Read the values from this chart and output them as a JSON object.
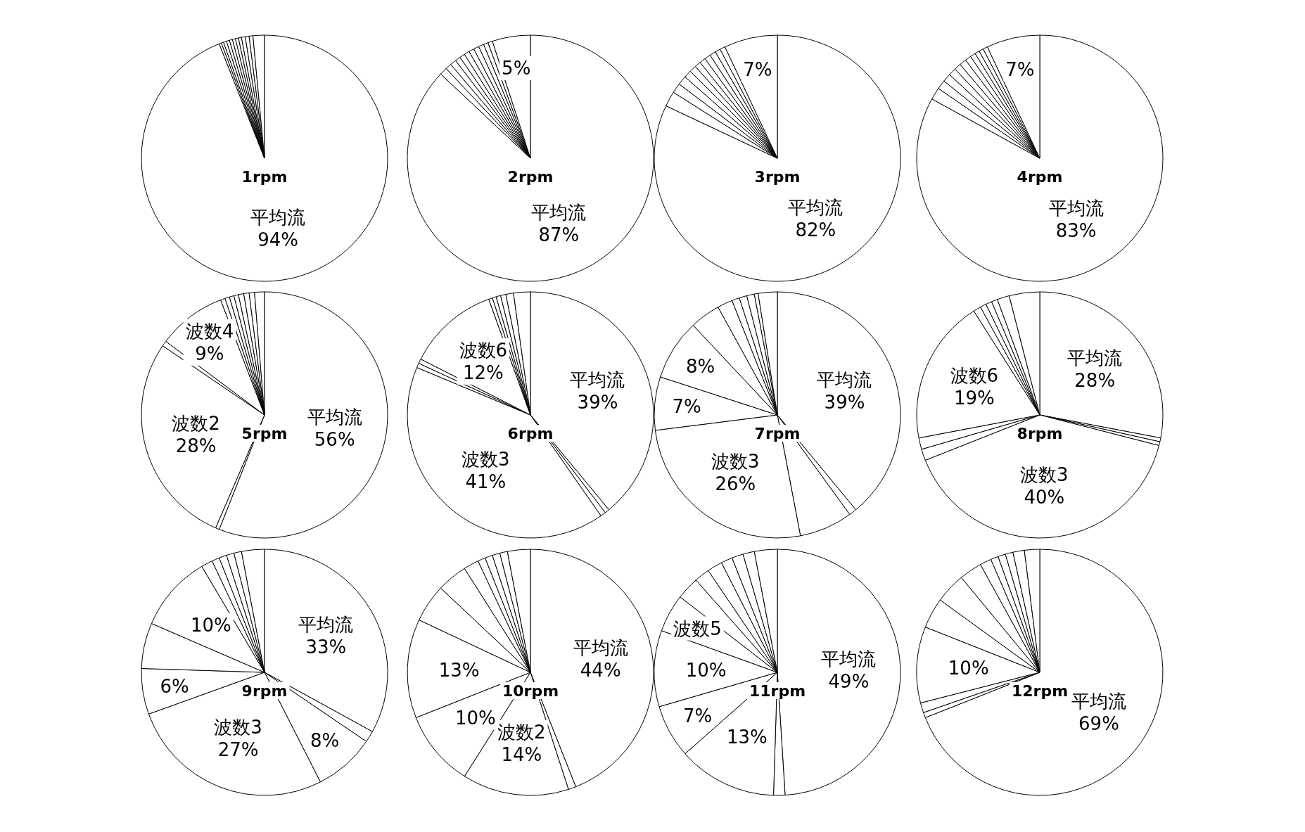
{
  "chart_data": [
    {
      "type": "pie",
      "title": "1rpm",
      "categories": [
        "平均流",
        null,
        null,
        null,
        null,
        null,
        null,
        null,
        null,
        null,
        null,
        null,
        null
      ],
      "values": [
        94,
        0.3,
        0.3,
        0.4,
        0.4,
        0.4,
        0.4,
        0.4,
        0.4,
        0.5,
        0.5,
        0.5,
        1.5
      ],
      "value_labels": [
        "94%",
        null,
        null,
        null,
        null,
        null,
        null,
        null,
        null,
        null,
        null,
        null,
        null
      ],
      "colors": [
        "#ffffff",
        "#ffffff",
        "#ffffff",
        "#ffffff",
        "#ffffff",
        "#ffffff",
        "#ffffff",
        "#ffffff",
        "#ffffff",
        "#ffffff",
        "#ffffff",
        "#ffffff",
        "#ffffff"
      ]
    },
    {
      "type": "pie",
      "title": "2rpm",
      "categories": [
        "平均流",
        null,
        null,
        null,
        null,
        null,
        null,
        null,
        null,
        null,
        null,
        null,
        null
      ],
      "values": [
        87,
        1.0,
        0.8,
        0.8,
        0.7,
        0.7,
        0.7,
        0.7,
        0.7,
        0.7,
        0.6,
        0.6,
        5
      ],
      "value_labels": [
        "87%",
        null,
        null,
        null,
        null,
        null,
        null,
        null,
        null,
        null,
        null,
        null,
        "5%"
      ],
      "colors": [
        "#ffffff",
        "#ffffff",
        "#ffffff",
        "#ffffff",
        "#ffffff",
        "#ffffff",
        "#ffffff",
        "#ffffff",
        "#ffffff",
        "#ffffff",
        "#ffffff",
        "#ffffff",
        "#ffffff"
      ]
    },
    {
      "type": "pie",
      "title": "3rpm",
      "categories": [
        "平均流",
        null,
        null,
        null,
        null,
        null,
        null,
        null,
        null,
        null,
        null,
        null,
        null
      ],
      "values": [
        82,
        2.0,
        1.3,
        1.2,
        1.0,
        0.9,
        0.8,
        0.8,
        0.8,
        0.8,
        0.7,
        0.7,
        7
      ],
      "value_labels": [
        "82%",
        null,
        null,
        null,
        null,
        null,
        null,
        null,
        null,
        null,
        null,
        null,
        "7%"
      ],
      "colors": [
        "#ffffff",
        "#ffffff",
        "#ffffff",
        "#ffffff",
        "#ffffff",
        "#ffffff",
        "#ffffff",
        "#ffffff",
        "#ffffff",
        "#ffffff",
        "#ffffff",
        "#ffffff",
        "#ffffff"
      ]
    },
    {
      "type": "pie",
      "title": "4rpm",
      "categories": [
        "平均流",
        null,
        null,
        null,
        null,
        null,
        null,
        null,
        null,
        null,
        null,
        null,
        null
      ],
      "values": [
        83,
        1.6,
        1.2,
        1.1,
        1.0,
        0.9,
        0.9,
        0.8,
        0.7,
        0.6,
        0.6,
        0.6,
        7
      ],
      "value_labels": [
        "83%",
        null,
        null,
        null,
        null,
        null,
        null,
        null,
        null,
        null,
        null,
        null,
        "7%"
      ],
      "colors": [
        "#ffffff",
        "#ffffff",
        "#ffffff",
        "#ffffff",
        "#ffffff",
        "#ffffff",
        "#ffffff",
        "#ffffff",
        "#ffffff",
        "#ffffff",
        "#ffffff",
        "#ffffff",
        "#ffffff"
      ]
    },
    {
      "type": "pie",
      "title": "5rpm",
      "categories": [
        "平均流",
        null,
        "波数2",
        null,
        "波数4",
        null,
        null,
        null,
        null,
        null,
        null,
        null,
        null
      ],
      "values": [
        56,
        0.5,
        28,
        0.7,
        9,
        0.6,
        0.6,
        0.6,
        0.6,
        0.7,
        0.7,
        0.7,
        1.3
      ],
      "value_labels": [
        "56%",
        null,
        "28%",
        null,
        "9%",
        null,
        null,
        null,
        null,
        null,
        null,
        null,
        null
      ],
      "colors": [
        "#ffffff",
        "#ffffff",
        "#ffffff",
        "#ffffff",
        "#ffffff",
        "#ffffff",
        "#ffffff",
        "#ffffff",
        "#ffffff",
        "#ffffff",
        "#ffffff",
        "#ffffff",
        "#ffffff"
      ]
    },
    {
      "type": "pie",
      "title": "6rpm",
      "categories": [
        "平均流",
        null,
        null,
        "波数3",
        null,
        null,
        "波数6",
        null,
        null,
        null,
        null,
        null,
        null
      ],
      "values": [
        39,
        0.6,
        0.7,
        41,
        0.6,
        0.6,
        12,
        0.5,
        0.5,
        0.6,
        0.7,
        1.0,
        2.2
      ],
      "value_labels": [
        "39%",
        null,
        null,
        "41%",
        null,
        null,
        "12%",
        null,
        null,
        null,
        null,
        null,
        null
      ],
      "colors": [
        "#ffffff",
        "#ffffff",
        "#ffffff",
        "#ffffff",
        "#ffffff",
        "#ffffff",
        "#ffffff",
        "#ffffff",
        "#ffffff",
        "#ffffff",
        "#ffffff",
        "#ffffff",
        "#ffffff"
      ]
    },
    {
      "type": "pie",
      "title": "7rpm",
      "categories": [
        "平均流",
        null,
        null,
        "波数3",
        null,
        null,
        null,
        null,
        null,
        null,
        null,
        null,
        null
      ],
      "values": [
        39,
        1,
        7,
        26,
        7,
        8,
        4,
        2,
        1,
        1,
        1,
        0.5,
        2.5
      ],
      "value_labels": [
        "39%",
        null,
        null,
        "26%",
        "7%",
        "8%",
        null,
        null,
        null,
        null,
        null,
        null,
        null
      ],
      "colors": [
        "#ffffff",
        "#ffffff",
        "#ffffff",
        "#ffffff",
        "#ffffff",
        "#ffffff",
        "#ffffff",
        "#ffffff",
        "#ffffff",
        "#ffffff",
        "#ffffff",
        "#ffffff",
        "#ffffff"
      ]
    },
    {
      "type": "pie",
      "title": "8rpm",
      "categories": [
        "平均流",
        null,
        null,
        "波数3",
        null,
        null,
        "波数6",
        null,
        null,
        null,
        null,
        null,
        null
      ],
      "values": [
        28,
        0.5,
        0.5,
        40,
        1.5,
        1.5,
        19,
        1,
        0.8,
        0.8,
        0.8,
        1.6,
        4
      ],
      "value_labels": [
        "28%",
        null,
        null,
        "40%",
        null,
        null,
        "19%",
        null,
        null,
        null,
        null,
        null,
        null
      ],
      "colors": [
        "#ffffff",
        "#ffffff",
        "#ffffff",
        "#ffffff",
        "#ffffff",
        "#ffffff",
        "#ffffff",
        "#ffffff",
        "#ffffff",
        "#ffffff",
        "#ffffff",
        "#ffffff",
        "#ffffff"
      ]
    },
    {
      "type": "pie",
      "title": "9rpm",
      "categories": [
        "平均流",
        null,
        null,
        "波数3",
        null,
        null,
        null,
        null,
        null,
        null,
        null,
        null,
        null
      ],
      "values": [
        33,
        1.5,
        8,
        27,
        6,
        6,
        10,
        1.5,
        1,
        1,
        1,
        1,
        3
      ],
      "value_labels": [
        "33%",
        null,
        "8%",
        "27%",
        "6%",
        null,
        "10%",
        null,
        null,
        null,
        null,
        null,
        null
      ],
      "colors": [
        "#ffffff",
        "#ffffff",
        "#ffffff",
        "#ffffff",
        "#ffffff",
        "#ffffff",
        "#ffffff",
        "#ffffff",
        "#ffffff",
        "#ffffff",
        "#ffffff",
        "#ffffff",
        "#ffffff"
      ]
    },
    {
      "type": "pie",
      "title": "10rpm",
      "categories": [
        "平均流",
        null,
        "波数2",
        null,
        null,
        null,
        null,
        null,
        null,
        null,
        null,
        null,
        null
      ],
      "values": [
        44,
        1,
        14,
        10,
        13,
        5,
        4,
        2,
        1,
        1,
        1,
        1,
        3
      ],
      "value_labels": [
        "44%",
        null,
        "14%",
        "10%",
        "13%",
        null,
        null,
        null,
        null,
        null,
        null,
        null,
        null
      ],
      "colors": [
        "#ffffff",
        "#ffffff",
        "#ffffff",
        "#ffffff",
        "#ffffff",
        "#ffffff",
        "#ffffff",
        "#ffffff",
        "#ffffff",
        "#ffffff",
        "#ffffff",
        "#ffffff",
        "#ffffff"
      ]
    },
    {
      "type": "pie",
      "title": "11rpm",
      "categories": [
        "平均流",
        null,
        null,
        null,
        null,
        "波数5",
        null,
        null,
        null,
        null,
        null,
        null,
        null
      ],
      "values": [
        49,
        1.5,
        13,
        7,
        10,
        5,
        3,
        2,
        2,
        1.5,
        1.5,
        1.5,
        3
      ],
      "value_labels": [
        "49%",
        null,
        "13%",
        "7%",
        "10%",
        null,
        null,
        null,
        null,
        null,
        null,
        null,
        null
      ],
      "colors": [
        "#ffffff",
        "#ffffff",
        "#ffffff",
        "#ffffff",
        "#ffffff",
        "#ffffff",
        "#ffffff",
        "#ffffff",
        "#ffffff",
        "#ffffff",
        "#ffffff",
        "#ffffff",
        "#ffffff"
      ]
    },
    {
      "type": "pie",
      "title": "12rpm",
      "categories": [
        "平均流",
        null,
        null,
        null,
        null,
        null,
        null,
        null,
        null,
        null,
        null,
        null,
        null
      ],
      "values": [
        69,
        0.7,
        1.3,
        10,
        4,
        4,
        3,
        1.5,
        1,
        1,
        1,
        1.5,
        2
      ],
      "value_labels": [
        "69%",
        null,
        null,
        "10%",
        null,
        null,
        null,
        null,
        null,
        null,
        null,
        null,
        null
      ],
      "colors": [
        "#ffffff",
        "#ffffff",
        "#ffffff",
        "#ffffff",
        "#ffffff",
        "#ffffff",
        "#ffffff",
        "#ffffff",
        "#ffffff",
        "#ffffff",
        "#ffffff",
        "#ffffff",
        "#ffffff"
      ]
    }
  ]
}
